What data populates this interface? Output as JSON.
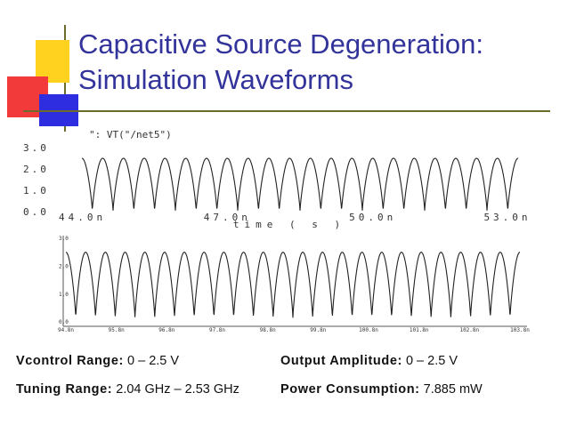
{
  "slide": {
    "title_line1": "Capacitive Source Degeneration:",
    "title_line2": "Simulation Waveforms",
    "decor_colors": {
      "yellow": "#ffd21f",
      "red": "#f23a3a",
      "blue": "#2e2ee0",
      "line": "#6b6b2b",
      "title": "#33339c"
    }
  },
  "specs": {
    "vcontrol_label": "Vcontrol Range:",
    "vcontrol_value": "0 – 2.5 V",
    "tuning_label": "Tuning Range:",
    "tuning_value": "2.04 GHz – 2.53 GHz",
    "amplitude_label": "Output Amplitude:",
    "amplitude_value": "0 – 2.5 V",
    "power_label": "Power Consumption:",
    "power_value": "7.885 mW"
  },
  "chart_data": [
    {
      "type": "line",
      "legend": "\": VT(\"/net5\")",
      "xlabel": "time ( s )",
      "ylabel": "",
      "xlim": [
        44.0,
        53.0
      ],
      "ylim": [
        0.0,
        3.0
      ],
      "x_ticks": [
        "44.0n",
        "47.0n",
        "50.0n",
        "53.0n"
      ],
      "x_tick_values": [
        44.0,
        47.0,
        50.0,
        53.0
      ],
      "y_ticks": [
        "0.0",
        "1.0",
        "2.0",
        "3.0"
      ],
      "y_tick_values": [
        0.0,
        1.0,
        2.0,
        3.0
      ],
      "waveform": {
        "kind": "periodic",
        "cycles": 21,
        "min": 0.05,
        "max": 2.5
      },
      "grid": false
    },
    {
      "type": "line",
      "legend": "",
      "xlabel": "",
      "ylabel": "",
      "xlim": [
        0,
        1
      ],
      "ylim": [
        0.0,
        3.0
      ],
      "x_ticks": [
        "94.8n",
        "95.8n",
        "96.8n",
        "97.8n",
        "98.8n",
        "99.8n",
        "100.8n",
        "101.8n",
        "102.8n",
        "103.8n"
      ],
      "y_ticks": [
        "0.0",
        "1.0",
        "2.0",
        "3.0"
      ],
      "y_tick_values": [
        0.0,
        1.0,
        2.0,
        3.0
      ],
      "waveform": {
        "kind": "periodic",
        "cycles": 23,
        "min": 0.15,
        "max": 2.5
      },
      "grid": false
    }
  ]
}
